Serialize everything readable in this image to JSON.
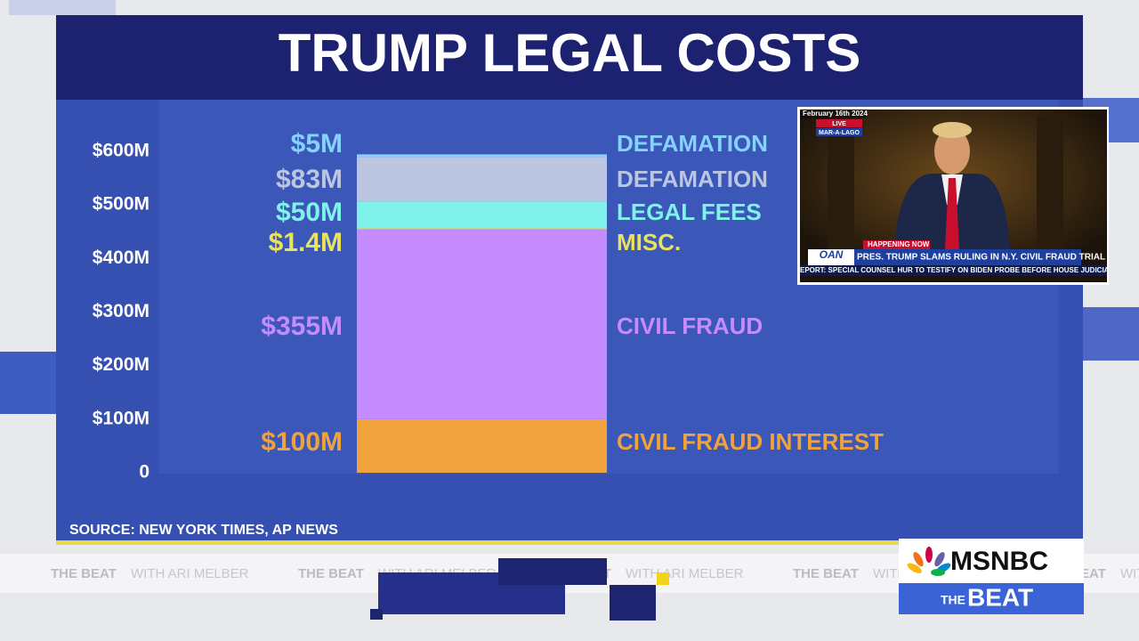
{
  "chart_data": {
    "type": "stacked_bar",
    "title": "TRUMP LEGAL COSTS",
    "categories": [
      null
    ],
    "series": [
      {
        "name": "CIVIL FRAUD INTEREST",
        "color": "#f0a23c",
        "values": [
          100
        ],
        "value_labels": [
          "$100M"
        ]
      },
      {
        "name": "CIVIL FRAUD",
        "color": "#c68cff",
        "values": [
          355
        ],
        "value_labels": [
          "$355M"
        ]
      },
      {
        "name": "MISC.",
        "color": "#e9e25a",
        "values": [
          1.4
        ],
        "value_labels": [
          "$1.4M"
        ]
      },
      {
        "name": "LEGAL FEES",
        "color": "#7ff3ea",
        "values": [
          50
        ],
        "value_labels": [
          "$50M"
        ]
      },
      {
        "name": "DEFAMATION",
        "color": "#bcc6e0",
        "values": [
          83
        ],
        "value_labels": [
          "$83M"
        ]
      },
      {
        "name": "DEFAMATION",
        "color": "#86d2ff",
        "values": [
          5
        ],
        "value_labels": [
          "$5M"
        ]
      }
    ],
    "ylim": [
      0,
      600
    ],
    "yticks": [
      0,
      {
        "value": 100,
        "label": "$100M"
      },
      {
        "value": 200,
        "label": "$200M"
      },
      {
        "value": 300,
        "label": "$300M"
      },
      {
        "value": 400,
        "label": "$400M"
      },
      {
        "value": 500,
        "label": "$500M"
      },
      {
        "value": 600,
        "label": "$600M"
      }
    ],
    "grid": false,
    "source": "SOURCE: NEW YORK TIMES, AP NEWS"
  },
  "inset": {
    "date": "February 16th 2024",
    "live": "LIVE",
    "location": "MAR-A-LAGO",
    "brand": "OAN",
    "banner": "HAPPENING NOW",
    "headline": "PRES. TRUMP SLAMS RULING IN N.Y. CIVIL FRAUD TRIAL",
    "crawl": "EPORT: SPECIAL COUNSEL HUR TO TESTIFY ON BIDEN PROBE BEFORE HOUSE JUDICIA"
  },
  "ticker": {
    "show": "THE BEAT",
    "host": "WITH ARI MELBER"
  },
  "logo": {
    "network": "MSNBC",
    "show_small": "THE",
    "show_big": "BEAT"
  }
}
